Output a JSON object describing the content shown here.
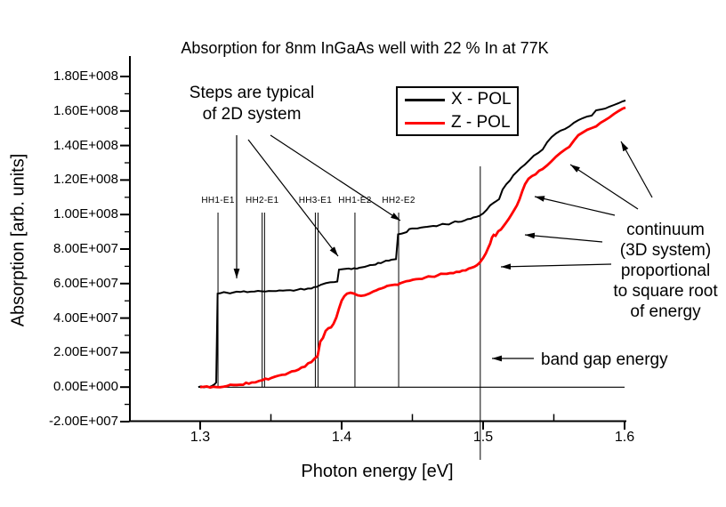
{
  "chart_data": {
    "type": "line",
    "title": "Absorption for 8nm InGaAs well with 22 % In at 77K",
    "xlabel": "Photon energy [eV]",
    "ylabel": "Absorption [arb. units]",
    "x_axis": {
      "min": 1.25,
      "max": 1.6,
      "major_ticks": [
        1.3,
        1.4,
        1.5,
        1.6
      ],
      "major_tick_labels": [
        "1.3",
        "1.4",
        "1.5",
        "1.6"
      ],
      "minor_ticks": [
        1.35,
        1.45,
        1.55
      ]
    },
    "y_axis": {
      "min": -20000000.0,
      "max": 190000000.0,
      "major_ticks": [
        180000000.0,
        160000000.0,
        140000000.0,
        120000000.0,
        100000000.0,
        80000000.0,
        60000000.0,
        40000000.0,
        20000000.0,
        0,
        -20000000.0
      ],
      "major_tick_labels": [
        "1.80E+008",
        "1.60E+008",
        "1.40E+008",
        "1.20E+008",
        "1.00E+008",
        "8.00E+007",
        "6.00E+007",
        "4.00E+007",
        "2.00E+007",
        "0.00E+000",
        "-2.00E+007"
      ],
      "minor_ticks": [
        170000000.0,
        150000000.0,
        130000000.0,
        110000000.0,
        90000000.0,
        70000000.0,
        50000000.0,
        30000000.0,
        10000000.0,
        -10000000.0
      ]
    },
    "legend": {
      "entries": [
        {
          "label": "X - POL",
          "color": "#000000"
        },
        {
          "label": "Z - POL",
          "color": "#ff0000"
        }
      ]
    },
    "transitions": [
      {
        "label": "HH1-E1",
        "energy": 1.3126
      },
      {
        "label": "HH2-E1",
        "energy": 1.3438
      },
      {
        "label": "HH3-E1",
        "energy": 1.3814
      },
      {
        "label": "HH1-E2",
        "energy": 1.4094
      },
      {
        "label": "HH2-E2",
        "energy": 1.4403
      }
    ],
    "extra_transition_lines": [
      1.3455,
      1.3833
    ],
    "band_gap_energy_eV": 1.498,
    "zero_line": {
      "from_eV": 1.2987,
      "to_eV": 1.6
    },
    "annotations": {
      "steps": {
        "lines": [
          "Steps are typical",
          "of 2D system"
        ]
      },
      "continuum": {
        "lines": [
          "continuum",
          "(3D system)",
          "proportional",
          "to square root",
          "of energy"
        ]
      },
      "band_gap": {
        "text": "band gap energy"
      }
    },
    "series": [
      {
        "name": "X - POL",
        "color": "#000000",
        "points": [
          [
            1.2987,
            0
          ],
          [
            1.3044,
            100000.0
          ],
          [
            1.3082,
            600000.0
          ],
          [
            1.3101,
            1600000.0
          ],
          [
            1.3113,
            2700000.0
          ],
          [
            1.3123,
            54200000.0
          ],
          [
            1.3145,
            54500000.0
          ],
          [
            1.3189,
            54700000.0
          ],
          [
            1.3233,
            54800000.0
          ],
          [
            1.3283,
            55100000.0
          ],
          [
            1.3333,
            55000000.0
          ],
          [
            1.3384,
            55400000.0
          ],
          [
            1.3434,
            55500000.0
          ],
          [
            1.3484,
            55700000.0
          ],
          [
            1.3535,
            55600000.0
          ],
          [
            1.3585,
            55900000.0
          ],
          [
            1.3635,
            56200000.0
          ],
          [
            1.3686,
            56400000.0
          ],
          [
            1.3736,
            56500000.0
          ],
          [
            1.3786,
            57100000.0
          ],
          [
            1.3824,
            58100000.0
          ],
          [
            1.3855,
            59400000.0
          ],
          [
            1.3887,
            60200000.0
          ],
          [
            1.3918,
            60700000.0
          ],
          [
            1.395,
            60900000.0
          ],
          [
            1.3969,
            61200000.0
          ],
          [
            1.3981,
            68100000.0
          ],
          [
            1.4013,
            68400000.0
          ],
          [
            1.405,
            68700000.0
          ],
          [
            1.4088,
            68900000.0
          ],
          [
            1.4126,
            69200000.0
          ],
          [
            1.4163,
            69700000.0
          ],
          [
            1.4201,
            70700000.0
          ],
          [
            1.4239,
            71000000.0
          ],
          [
            1.4277,
            71800000.0
          ],
          [
            1.4314,
            73300000.0
          ],
          [
            1.4352,
            73800000.0
          ],
          [
            1.4384,
            74100000.0
          ],
          [
            1.4399,
            88500000.0
          ],
          [
            1.4428,
            89000000.0
          ],
          [
            1.4459,
            89800000.0
          ],
          [
            1.4478,
            91600000.0
          ],
          [
            1.4516,
            91900000.0
          ],
          [
            1.456,
            92400000.0
          ],
          [
            1.4604,
            92900000.0
          ],
          [
            1.4648,
            93400000.0
          ],
          [
            1.4692,
            93900000.0
          ],
          [
            1.4736,
            94400000.0
          ],
          [
            1.478,
            95200000.0
          ],
          [
            1.4824,
            95700000.0
          ],
          [
            1.4868,
            96500000.0
          ],
          [
            1.4912,
            97500000.0
          ],
          [
            1.495,
            98600000.0
          ],
          [
            1.4975,
            99300000.0
          ],
          [
            1.5,
            100600000.0
          ],
          [
            1.5025,
            102700000.0
          ],
          [
            1.505,
            105300000.0
          ],
          [
            1.5075,
            106800000.0
          ],
          [
            1.5094,
            107800000.0
          ],
          [
            1.5113,
            108900000.0
          ],
          [
            1.5138,
            114500000.0
          ],
          [
            1.5164,
            117600000.0
          ],
          [
            1.5189,
            119700000.0
          ],
          [
            1.5214,
            122800000.0
          ],
          [
            1.5239,
            124800000.0
          ],
          [
            1.5264,
            126900000.0
          ],
          [
            1.5296,
            129000000.0
          ],
          [
            1.5327,
            131500000.0
          ],
          [
            1.5358,
            134100000.0
          ],
          [
            1.539,
            135700000.0
          ],
          [
            1.5421,
            137700000.0
          ],
          [
            1.5453,
            141900000.0
          ],
          [
            1.5484,
            144900000.0
          ],
          [
            1.5516,
            147000000.0
          ],
          [
            1.5547,
            148600000.0
          ],
          [
            1.5579,
            149600000.0
          ],
          [
            1.561,
            151100000.0
          ],
          [
            1.5642,
            153200000.0
          ],
          [
            1.5673,
            154700000.0
          ],
          [
            1.5704,
            155800000.0
          ],
          [
            1.5736,
            156800000.0
          ],
          [
            1.5767,
            157300000.0
          ],
          [
            1.5799,
            160400000.0
          ],
          [
            1.583,
            160900000.0
          ],
          [
            1.5862,
            161400000.0
          ],
          [
            1.5893,
            162500000.0
          ],
          [
            1.5925,
            163500000.0
          ],
          [
            1.5956,
            164500000.0
          ],
          [
            1.5987,
            165600000.0
          ],
          [
            1.6006,
            166100000.0
          ]
        ]
      },
      {
        "name": "Z - POL",
        "color": "#ff0000",
        "points": [
          [
            1.3,
            0
          ],
          [
            1.3094,
            200000.0
          ],
          [
            1.3189,
            600000.0
          ],
          [
            1.3283,
            1400000.0
          ],
          [
            1.3365,
            2700000.0
          ],
          [
            1.344,
            4000000.0
          ],
          [
            1.3503,
            5300000.0
          ],
          [
            1.3579,
            7100000.0
          ],
          [
            1.3648,
            9100000.0
          ],
          [
            1.3717,
            11400000.0
          ],
          [
            1.3786,
            14500000.0
          ],
          [
            1.383,
            18100000.0
          ],
          [
            1.3839,
            22000000.0
          ],
          [
            1.3849,
            26400000.0
          ],
          [
            1.3868,
            28500000.0
          ],
          [
            1.3887,
            32600000.0
          ],
          [
            1.3906,
            34100000.0
          ],
          [
            1.3925,
            34600000.0
          ],
          [
            1.3943,
            36700000.0
          ],
          [
            1.3962,
            40300000.0
          ],
          [
            1.3981,
            45500000.0
          ],
          [
            1.4,
            50100000.0
          ],
          [
            1.4019,
            52700000.0
          ],
          [
            1.4038,
            54200000.0
          ],
          [
            1.4063,
            54700000.0
          ],
          [
            1.4088,
            54200000.0
          ],
          [
            1.4113,
            53200000.0
          ],
          [
            1.4138,
            52900000.0
          ],
          [
            1.4163,
            53200000.0
          ],
          [
            1.4195,
            54200000.0
          ],
          [
            1.4226,
            55500000.0
          ],
          [
            1.4264,
            56800000.0
          ],
          [
            1.4302,
            57800000.0
          ],
          [
            1.434,
            58900000.0
          ],
          [
            1.4377,
            59400000.0
          ],
          [
            1.4415,
            60200000.0
          ],
          [
            1.4459,
            61400000.0
          ],
          [
            1.4503,
            62200000.0
          ],
          [
            1.4547,
            62700000.0
          ],
          [
            1.4591,
            63500000.0
          ],
          [
            1.4635,
            64000000.0
          ],
          [
            1.4679,
            64800000.0
          ],
          [
            1.4723,
            65600000.0
          ],
          [
            1.4767,
            66100000.0
          ],
          [
            1.4811,
            66800000.0
          ],
          [
            1.4855,
            67600000.0
          ],
          [
            1.4899,
            68700000.0
          ],
          [
            1.4937,
            69700000.0
          ],
          [
            1.4975,
            72000000.0
          ],
          [
            1.5,
            74800000.0
          ],
          [
            1.5019,
            77400000.0
          ],
          [
            1.5038,
            81000000.0
          ],
          [
            1.505,
            83100000.0
          ],
          [
            1.5063,
            86700000.0
          ],
          [
            1.5075,
            88200000.0
          ],
          [
            1.5088,
            87700000.0
          ],
          [
            1.5107,
            90300000.0
          ],
          [
            1.5126,
            91300000.0
          ],
          [
            1.5145,
            93400000.0
          ],
          [
            1.5164,
            95500000.0
          ],
          [
            1.5182,
            97500000.0
          ],
          [
            1.5201,
            100100000.0
          ],
          [
            1.522,
            102700000.0
          ],
          [
            1.5239,
            105300000.0
          ],
          [
            1.5258,
            108900000.0
          ],
          [
            1.5277,
            113500000.0
          ],
          [
            1.5296,
            117600000.0
          ],
          [
            1.5321,
            120700000.0
          ],
          [
            1.5346,
            122300000.0
          ],
          [
            1.5371,
            123300000.0
          ],
          [
            1.5396,
            125400000.0
          ],
          [
            1.5421,
            126400000.0
          ],
          [
            1.5453,
            128500000.0
          ],
          [
            1.5484,
            131000000.0
          ],
          [
            1.5516,
            133600000.0
          ],
          [
            1.5547,
            135700000.0
          ],
          [
            1.5579,
            137700000.0
          ],
          [
            1.561,
            139300000.0
          ],
          [
            1.5642,
            142900000.0
          ],
          [
            1.5673,
            146000000.0
          ],
          [
            1.5704,
            147500000.0
          ],
          [
            1.5736,
            149100000.0
          ],
          [
            1.5767,
            150100000.0
          ],
          [
            1.5799,
            151100000.0
          ],
          [
            1.583,
            153200000.0
          ],
          [
            1.5862,
            154700000.0
          ],
          [
            1.5893,
            156300000.0
          ],
          [
            1.5925,
            158300000.0
          ],
          [
            1.5956,
            159900000.0
          ],
          [
            1.5987,
            161400000.0
          ],
          [
            1.6006,
            162000000.0
          ]
        ]
      }
    ]
  }
}
